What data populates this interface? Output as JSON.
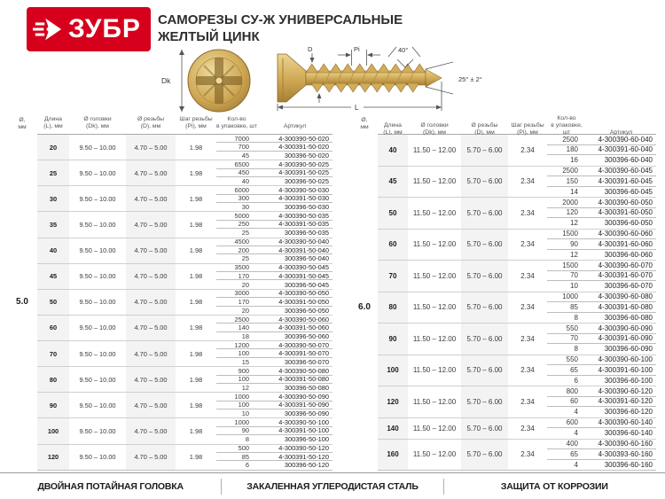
{
  "brand": {
    "logo_text": "ЗУБР",
    "logo_color": "#d6001c"
  },
  "header": {
    "title_line1": "САМОРЕЗЫ СУ-Ж УНИВЕРСАЛЬНЫЕ",
    "title_line2": "ЖЕЛТЫЙ ЦИНК"
  },
  "diagram": {
    "labels": {
      "dk": "Dk",
      "d": "D",
      "pi": "Pi",
      "angle_top": "40°",
      "angle_tip": "25° ± 2°",
      "length": "L"
    }
  },
  "table_headers": [
    {
      "l1": "Ø,",
      "l2": "мм"
    },
    {
      "l1": "Длина",
      "l2": "(L), мм"
    },
    {
      "l1": "Ø головки",
      "l2": "(Dk), мм"
    },
    {
      "l1": "Ø резьбы",
      "l2": "(D), мм"
    },
    {
      "l1": "Шаг резьбы",
      "l2": "(Pi), мм"
    },
    {
      "l1": "Кол-во",
      "l2": "в упаковке, шт"
    },
    {
      "l1": "Артикул",
      "l2": ""
    }
  ],
  "tables": [
    {
      "diameter": "5.0",
      "dia_at_length": "50",
      "head_dia": "9.50 – 10.00",
      "thread_dia": "4.70 – 5.00",
      "pitch": "1.98",
      "groups": [
        {
          "length": "20",
          "packs": [
            {
              "qty": "7000",
              "article": "4-300390-50-020"
            },
            {
              "qty": "700",
              "article": "4-300391-50-020"
            },
            {
              "qty": "45",
              "article": "300396-50-020"
            }
          ]
        },
        {
          "length": "25",
          "packs": [
            {
              "qty": "6500",
              "article": "4-300390-50-025"
            },
            {
              "qty": "450",
              "article": "4-300391-50-025"
            },
            {
              "qty": "40",
              "article": "300396-50-025"
            }
          ]
        },
        {
          "length": "30",
          "packs": [
            {
              "qty": "6000",
              "article": "4-300390-50-030"
            },
            {
              "qty": "300",
              "article": "4-300391-50-030"
            },
            {
              "qty": "30",
              "article": "300396-50-030"
            }
          ]
        },
        {
          "length": "35",
          "packs": [
            {
              "qty": "5000",
              "article": "4-300390-50-035"
            },
            {
              "qty": "250",
              "article": "4-300391-50-035"
            },
            {
              "qty": "25",
              "article": "300396-50-035"
            }
          ]
        },
        {
          "length": "40",
          "packs": [
            {
              "qty": "4500",
              "article": "4-300390-50-040"
            },
            {
              "qty": "200",
              "article": "4-300391-50-040"
            },
            {
              "qty": "25",
              "article": "300396-50-040"
            }
          ]
        },
        {
          "length": "45",
          "packs": [
            {
              "qty": "3500",
              "article": "4-300390-50-045"
            },
            {
              "qty": "170",
              "article": "4-300391-50-045"
            },
            {
              "qty": "20",
              "article": "300396-50-045"
            }
          ]
        },
        {
          "length": "50",
          "packs": [
            {
              "qty": "3000",
              "article": "4-300390-50-050"
            },
            {
              "qty": "170",
              "article": "4-300391-50-050"
            },
            {
              "qty": "20",
              "article": "300396-50-050"
            }
          ]
        },
        {
          "length": "60",
          "packs": [
            {
              "qty": "2500",
              "article": "4-300390-50-060"
            },
            {
              "qty": "140",
              "article": "4-300391-50-060"
            },
            {
              "qty": "18",
              "article": "300396-50-060"
            }
          ]
        },
        {
          "length": "70",
          "packs": [
            {
              "qty": "1200",
              "article": "4-300390-50-070"
            },
            {
              "qty": "100",
              "article": "4-300391-50-070"
            },
            {
              "qty": "15",
              "article": "300396-50-070"
            }
          ]
        },
        {
          "length": "80",
          "packs": [
            {
              "qty": "900",
              "article": "4-300390-50-080"
            },
            {
              "qty": "100",
              "article": "4-300391-50-080"
            },
            {
              "qty": "12",
              "article": "300396-50-080"
            }
          ]
        },
        {
          "length": "90",
          "packs": [
            {
              "qty": "1000",
              "article": "4-300390-50-090"
            },
            {
              "qty": "100",
              "article": "4-300391-50-090"
            },
            {
              "qty": "10",
              "article": "300396-50-090"
            }
          ]
        },
        {
          "length": "100",
          "packs": [
            {
              "qty": "1000",
              "article": "4-300390-50-100"
            },
            {
              "qty": "90",
              "article": "4-300391-50-100"
            },
            {
              "qty": "8",
              "article": "300396-50-100"
            }
          ]
        },
        {
          "length": "120",
          "packs": [
            {
              "qty": "500",
              "article": "4-300390-50-120"
            },
            {
              "qty": "85",
              "article": "4-300391-50-120"
            },
            {
              "qty": "6",
              "article": "300396-50-120"
            }
          ]
        }
      ]
    },
    {
      "diameter": "6.0",
      "dia_at_length": "80",
      "head_dia": "11.50 – 12.00",
      "thread_dia": "5.70 – 6.00",
      "pitch": "2.34",
      "groups": [
        {
          "length": "40",
          "packs": [
            {
              "qty": "2500",
              "article": "4-300390-60-040"
            },
            {
              "qty": "180",
              "article": "4-300391-60-040"
            },
            {
              "qty": "16",
              "article": "300396-60-040"
            }
          ]
        },
        {
          "length": "45",
          "packs": [
            {
              "qty": "2500",
              "article": "4-300390-60-045"
            },
            {
              "qty": "150",
              "article": "4-300391-60-045"
            },
            {
              "qty": "14",
              "article": "300396-60-045"
            }
          ]
        },
        {
          "length": "50",
          "packs": [
            {
              "qty": "2000",
              "article": "4-300390-60-050"
            },
            {
              "qty": "120",
              "article": "4-300391-60-050"
            },
            {
              "qty": "12",
              "article": "300396-60-050"
            }
          ]
        },
        {
          "length": "60",
          "packs": [
            {
              "qty": "1500",
              "article": "4-300390-60-060"
            },
            {
              "qty": "90",
              "article": "4-300391-60-060"
            },
            {
              "qty": "12",
              "article": "300396-60-060"
            }
          ]
        },
        {
          "length": "70",
          "packs": [
            {
              "qty": "1500",
              "article": "4-300390-60-070"
            },
            {
              "qty": "70",
              "article": "4-300391-60-070"
            },
            {
              "qty": "10",
              "article": "300396-60-070"
            }
          ]
        },
        {
          "length": "80",
          "packs": [
            {
              "qty": "1000",
              "article": "4-300390-60-080"
            },
            {
              "qty": "85",
              "article": "4-300391-60-080"
            },
            {
              "qty": "8",
              "article": "300396-60-080"
            }
          ]
        },
        {
          "length": "90",
          "packs": [
            {
              "qty": "550",
              "article": "4-300390-60-090"
            },
            {
              "qty": "70",
              "article": "4-300391-60-090"
            },
            {
              "qty": "8",
              "article": "300396-60-090"
            }
          ]
        },
        {
          "length": "100",
          "packs": [
            {
              "qty": "550",
              "article": "4-300390-60-100"
            },
            {
              "qty": "65",
              "article": "4-300391-60-100"
            },
            {
              "qty": "6",
              "article": "300396-60-100"
            }
          ]
        },
        {
          "length": "120",
          "packs": [
            {
              "qty": "800",
              "article": "4-300390-60-120"
            },
            {
              "qty": "60",
              "article": "4-300391-60-120"
            },
            {
              "qty": "4",
              "article": "300396-60-120"
            }
          ]
        },
        {
          "length": "140",
          "packs": [
            {
              "qty": "600",
              "article": "4-300390-60-140"
            },
            {
              "qty": "4",
              "article": "300396-60-140"
            }
          ]
        },
        {
          "length": "160",
          "packs": [
            {
              "qty": "400",
              "article": "4-300390-60-160"
            },
            {
              "qty": "65",
              "article": "4-300393-60-160"
            },
            {
              "qty": "4",
              "article": "300396-60-160"
            }
          ]
        }
      ]
    }
  ],
  "footer": {
    "items": [
      "ДВОЙНАЯ ПОТАЙНАЯ ГОЛОВКА",
      "ЗАКАЛЕННАЯ УГЛЕРОДИСТАЯ СТАЛЬ",
      "ЗАЩИТА ОТ КОРРОЗИИ"
    ]
  }
}
